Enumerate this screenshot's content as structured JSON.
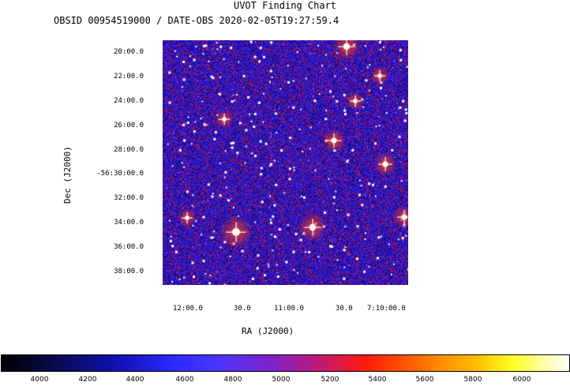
{
  "title": "UVOT Finding Chart",
  "subtitle": "OBSID 00954519000 / DATE-OBS 2020-02-05T19:27:59.4",
  "dec_axis": {
    "label": "Dec (J2000)",
    "ticks": [
      "20:00.0",
      "22:00.0",
      "24:00.0",
      "26:00.0",
      "28:00.0",
      "-56:30:00.0",
      "32:00.0",
      "34:00.0",
      "36:00.0",
      "38:00.0"
    ]
  },
  "ra_axis": {
    "label": "RA (J2000)",
    "ticks": [
      "12:00.0",
      "30.0",
      "11:00.0",
      "30.0",
      "7:10:00.0"
    ]
  },
  "colorbar": {
    "labels": [
      "4000",
      "4200",
      "4400",
      "4600",
      "4800",
      "5000",
      "5200",
      "5400",
      "5600",
      "5800",
      "6000"
    ]
  },
  "colors": {
    "background_noise": "#1a17d6",
    "noise_red": "#e4121a",
    "noise_dark": "#0d0a70",
    "stars": "#ffffff"
  }
}
